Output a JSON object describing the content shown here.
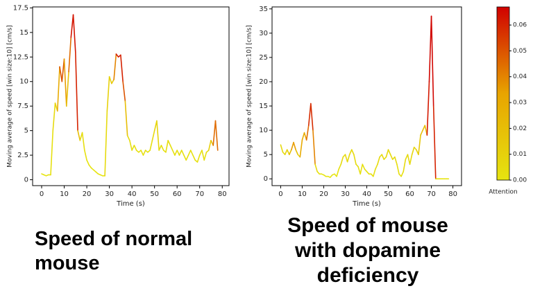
{
  "chart_data": [
    {
      "type": "line",
      "xlabel": "Time (s)",
      "ylabel": "Moving average of speed [win size:10] [cm/s]",
      "caption": "Speed of normal mouse",
      "x": [
        0,
        1,
        2,
        3,
        4,
        5,
        6,
        7,
        8,
        9,
        10,
        11,
        12,
        13,
        14,
        15,
        16,
        17,
        18,
        19,
        20,
        21,
        22,
        23,
        24,
        25,
        26,
        27,
        28,
        29,
        30,
        31,
        32,
        33,
        34,
        35,
        36,
        37,
        38,
        39,
        40,
        41,
        42,
        43,
        44,
        45,
        46,
        47,
        48,
        49,
        50,
        51,
        52,
        53,
        54,
        55,
        56,
        57,
        58,
        59,
        60,
        61,
        62,
        63,
        64,
        65,
        66,
        67,
        68,
        69,
        70,
        71,
        72,
        73,
        74,
        75,
        76,
        77,
        78
      ],
      "y": [
        0.6,
        0.5,
        0.4,
        0.5,
        0.5,
        5,
        7.8,
        7,
        11.5,
        10,
        12.3,
        7.5,
        11,
        14.5,
        16.8,
        13,
        5,
        4,
        4.8,
        3,
        2,
        1.5,
        1.2,
        1,
        0.8,
        0.6,
        0.5,
        0.4,
        0.4,
        7,
        10.5,
        9.8,
        10.2,
        12.8,
        12.5,
        12.7,
        10,
        8,
        4.5,
        4,
        3,
        3.5,
        3,
        2.8,
        3,
        2.5,
        3,
        2.8,
        3,
        4,
        5,
        6,
        3,
        3.5,
        3,
        2.8,
        4,
        3.5,
        3,
        2.5,
        3,
        2.5,
        3,
        2.5,
        2,
        2.5,
        3,
        2.5,
        2,
        1.8,
        2.5,
        3,
        2,
        2.8,
        3,
        4,
        3.5,
        6,
        3
      ],
      "attention": [
        0,
        0,
        0,
        0,
        0,
        0.002,
        0.005,
        0.01,
        0.03,
        0.05,
        0.035,
        0.01,
        0.02,
        0.045,
        0.063,
        0.06,
        0.02,
        0.005,
        0.003,
        0.002,
        0,
        0,
        0,
        0,
        0,
        0,
        0,
        0,
        0,
        0.005,
        0.01,
        0.01,
        0.015,
        0.04,
        0.062,
        0.06,
        0.05,
        0.02,
        0.005,
        0.003,
        0.002,
        0.002,
        0.002,
        0.002,
        0.002,
        0.002,
        0.002,
        0.002,
        0.002,
        0.003,
        0.005,
        0.008,
        0.003,
        0.002,
        0.002,
        0.002,
        0.003,
        0.002,
        0.002,
        0.002,
        0.002,
        0.002,
        0.002,
        0.002,
        0.002,
        0.002,
        0.002,
        0.002,
        0.002,
        0.002,
        0.002,
        0.002,
        0.002,
        0.003,
        0.004,
        0.01,
        0.02,
        0.045,
        0.02
      ],
      "xlim": [
        -4,
        83
      ],
      "ylim": [
        -0.6,
        17.6
      ],
      "xticks": [
        0,
        10,
        20,
        30,
        40,
        50,
        60,
        70,
        80
      ],
      "yticks": [
        0,
        2.5,
        5,
        7.5,
        10,
        12.5,
        15,
        17.5
      ]
    },
    {
      "type": "line",
      "xlabel": "Time (s)",
      "ylabel": "Moving average of speed [win size:10] [cm/s]",
      "caption": "Speed of mouse with dopamine deficiency",
      "x": [
        0,
        1,
        2,
        3,
        4,
        5,
        6,
        7,
        8,
        9,
        10,
        11,
        12,
        13,
        14,
        15,
        16,
        17,
        18,
        19,
        20,
        21,
        22,
        23,
        24,
        25,
        26,
        27,
        28,
        29,
        30,
        31,
        32,
        33,
        34,
        35,
        36,
        37,
        38,
        39,
        40,
        41,
        42,
        43,
        44,
        45,
        46,
        47,
        48,
        49,
        50,
        51,
        52,
        53,
        54,
        55,
        56,
        57,
        58,
        59,
        60,
        61,
        62,
        63,
        64,
        65,
        66,
        67,
        68,
        69,
        70,
        71,
        72,
        73,
        74,
        75,
        76,
        77,
        78
      ],
      "y": [
        7,
        5.5,
        5,
        6,
        5,
        6,
        7.5,
        6,
        5,
        4.5,
        8,
        9.5,
        8,
        11,
        15.5,
        10,
        3,
        1.5,
        1,
        1,
        0.8,
        0.5,
        0.5,
        0.3,
        0.8,
        1,
        0.5,
        2,
        3,
        4.5,
        5,
        3.5,
        5,
        6,
        5,
        3,
        2.5,
        1,
        3,
        2,
        1.5,
        1,
        1,
        0.5,
        2,
        3,
        4.5,
        5,
        4,
        4.5,
        6,
        5,
        4,
        4.5,
        3,
        1,
        0.5,
        1.5,
        4,
        5,
        3,
        5,
        6.5,
        6,
        5,
        9,
        10,
        11,
        9,
        20,
        33.5,
        15,
        0,
        0,
        0,
        0,
        0,
        0,
        0
      ],
      "attention": [
        0.005,
        0.005,
        0.005,
        0.008,
        0.01,
        0.02,
        0.035,
        0.02,
        0.01,
        0.008,
        0.03,
        0.03,
        0.02,
        0.045,
        0.058,
        0.04,
        0.005,
        0.002,
        0,
        0,
        0,
        0,
        0,
        0,
        0,
        0,
        0,
        0,
        0.002,
        0.005,
        0.005,
        0.003,
        0.005,
        0.005,
        0.005,
        0.003,
        0.002,
        0.002,
        0.002,
        0.002,
        0.002,
        0.002,
        0.002,
        0.002,
        0.002,
        0.003,
        0.005,
        0.005,
        0.005,
        0.005,
        0.005,
        0.005,
        0.005,
        0.005,
        0.003,
        0.002,
        0.002,
        0.002,
        0.005,
        0.005,
        0.005,
        0.005,
        0.008,
        0.008,
        0.008,
        0.015,
        0.02,
        0.02,
        0.02,
        0.062,
        0.066,
        0.06,
        0.002,
        0,
        0,
        0,
        0,
        0,
        0
      ],
      "xlim": [
        -4,
        84
      ],
      "ylim": [
        -1.4,
        35.4
      ],
      "xticks": [
        0,
        10,
        20,
        30,
        40,
        50,
        60,
        70,
        80
      ],
      "yticks": [
        0,
        5,
        10,
        15,
        20,
        25,
        30,
        35
      ],
      "colorbar": {
        "label": "Attention",
        "clim": [
          0,
          0.067
        ],
        "colors": [
          "#e6e410",
          "#e8a400",
          "#d00000"
        ],
        "ticks": [
          {
            "value": 0,
            "label": "0.00"
          },
          {
            "value": 0.01,
            "label": "0.01"
          },
          {
            "value": 0.02,
            "label": "0.02"
          },
          {
            "value": 0.03,
            "label": "0.03"
          },
          {
            "value": 0.04,
            "label": "0.04"
          },
          {
            "value": 0.05,
            "label": "0.05"
          },
          {
            "value": 0.06,
            "label": "0.06"
          }
        ]
      }
    }
  ]
}
